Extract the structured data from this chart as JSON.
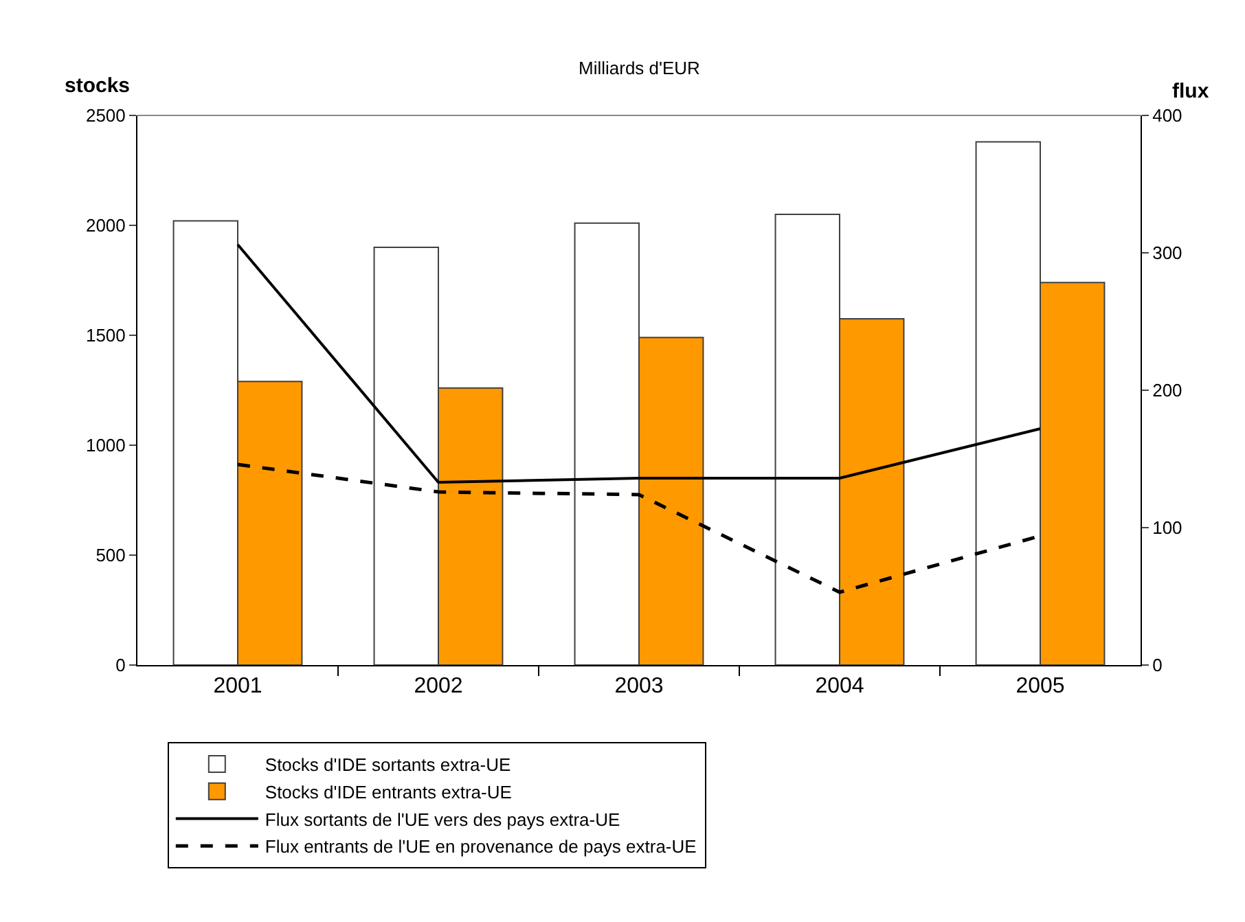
{
  "chart_data": {
    "type": "bar",
    "subtitle": "Milliards d'EUR",
    "ylabel": "stocks",
    "y2label": "flux",
    "categories": [
      "2001",
      "2002",
      "2003",
      "2004",
      "2005"
    ],
    "series": [
      {
        "name": "Stocks d'IDE sortants extra-UE",
        "color": "#ffffff",
        "values": [
          2020,
          1900,
          2010,
          2050,
          2380
        ]
      },
      {
        "name": "Stocks d'IDE entrants extra-UE",
        "color": "#ff9900",
        "values": [
          1290,
          1260,
          1490,
          1575,
          1740
        ]
      },
      {
        "name": "Flux sortants de l'UE vers des pays extra-UE",
        "type": "line",
        "axis": "y2",
        "color": "#000000",
        "line_style": "solid",
        "values": [
          306,
          133,
          136,
          136,
          172
        ]
      },
      {
        "name": "Flux entrants de l'UE en provenance de pays extra-UE",
        "type": "line",
        "axis": "y2",
        "color": "#000000",
        "line_style": "dashed",
        "values": [
          146,
          126,
          124,
          53,
          94
        ]
      }
    ],
    "ylim": [
      0,
      2500
    ],
    "yticks": [
      0,
      500,
      1000,
      1500,
      2000,
      2500
    ],
    "y2lim": [
      0,
      400
    ],
    "y2ticks": [
      0,
      100,
      200,
      300,
      400
    ],
    "legend": "bottom",
    "marker": "none"
  }
}
